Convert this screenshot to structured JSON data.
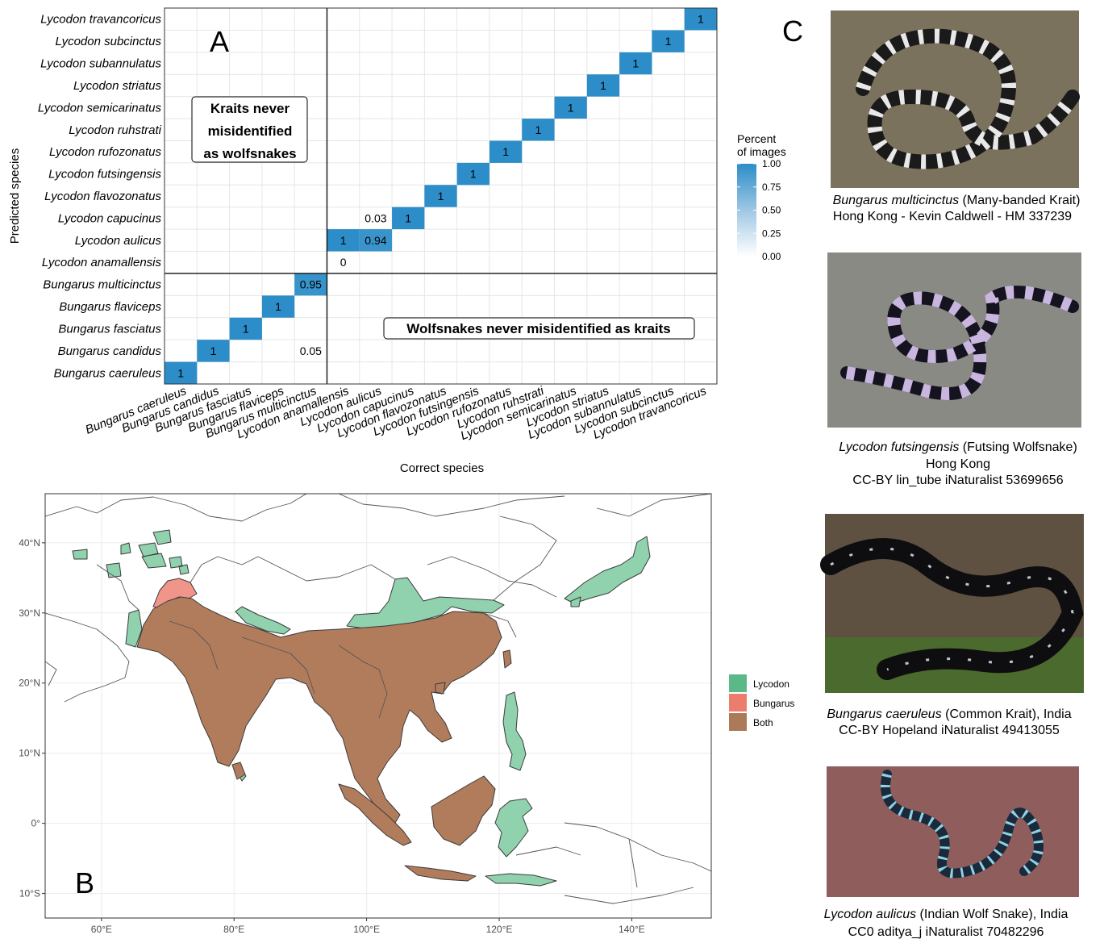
{
  "panels": {
    "a": "A",
    "b": "B",
    "c": "C"
  },
  "chart_data": [
    {
      "type": "heatmap",
      "panel": "A",
      "xlabel": "Correct species",
      "ylabel": "Predicted species",
      "categories": [
        "Bungarus caeruleus",
        "Bungarus candidus",
        "Bungarus fasciatus",
        "Bungarus flaviceps",
        "Bungarus multicinctus",
        "Lycodon anamallensis",
        "Lycodon aulicus",
        "Lycodon capucinus",
        "Lycodon flavozonatus",
        "Lycodon futsingensis",
        "Lycodon rufozonatus",
        "Lycodon ruhstrati",
        "Lycodon semicarinatus",
        "Lycodon striatus",
        "Lycodon subannulatus",
        "Lycodon subcinctus",
        "Lycodon travancoricus"
      ],
      "cells": [
        {
          "x": "Bungarus caeruleus",
          "y": "Bungarus caeruleus",
          "value": 1,
          "label": "1"
        },
        {
          "x": "Bungarus candidus",
          "y": "Bungarus candidus",
          "value": 1,
          "label": "1"
        },
        {
          "x": "Bungarus fasciatus",
          "y": "Bungarus fasciatus",
          "value": 1,
          "label": "1"
        },
        {
          "x": "Bungarus flaviceps",
          "y": "Bungarus flaviceps",
          "value": 1,
          "label": "1"
        },
        {
          "x": "Bungarus multicinctus",
          "y": "Bungarus multicinctus",
          "value": 0.95,
          "label": "0.95"
        },
        {
          "x": "Bungarus multicinctus",
          "y": "Bungarus candidus",
          "value": 0.05,
          "label": "0.05"
        },
        {
          "x": "Lycodon anamallensis",
          "y": "Lycodon anamallensis",
          "value": 0,
          "label": "0"
        },
        {
          "x": "Lycodon anamallensis",
          "y": "Lycodon aulicus",
          "value": 1,
          "label": "1"
        },
        {
          "x": "Lycodon aulicus",
          "y": "Lycodon aulicus",
          "value": 0.94,
          "label": "0.94"
        },
        {
          "x": "Lycodon aulicus",
          "y": "Lycodon capucinus",
          "value": 0.03,
          "label": "0.03"
        },
        {
          "x": "Lycodon capucinus",
          "y": "Lycodon capucinus",
          "value": 1,
          "label": "1"
        },
        {
          "x": "Lycodon flavozonatus",
          "y": "Lycodon flavozonatus",
          "value": 1,
          "label": "1"
        },
        {
          "x": "Lycodon futsingensis",
          "y": "Lycodon futsingensis",
          "value": 1,
          "label": "1"
        },
        {
          "x": "Lycodon rufozonatus",
          "y": "Lycodon rufozonatus",
          "value": 1,
          "label": "1"
        },
        {
          "x": "Lycodon ruhstrati",
          "y": "Lycodon ruhstrati",
          "value": 1,
          "label": "1"
        },
        {
          "x": "Lycodon semicarinatus",
          "y": "Lycodon semicarinatus",
          "value": 1,
          "label": "1"
        },
        {
          "x": "Lycodon striatus",
          "y": "Lycodon striatus",
          "value": 1,
          "label": "1"
        },
        {
          "x": "Lycodon subannulatus",
          "y": "Lycodon subannulatus",
          "value": 1,
          "label": "1"
        },
        {
          "x": "Lycodon subcinctus",
          "y": "Lycodon subcinctus",
          "value": 1,
          "label": "1"
        },
        {
          "x": "Lycodon travancoricus",
          "y": "Lycodon travancoricus",
          "value": 1,
          "label": "1"
        }
      ],
      "divider_after_index": 4,
      "legend": {
        "title_lines": [
          "Percent",
          "of images"
        ],
        "ticks": [
          1.0,
          0.75,
          0.5,
          0.25,
          0.0
        ],
        "tick_labels": [
          "1.00",
          "0.75",
          "0.50",
          "0.25",
          "0.00"
        ],
        "placement": "right",
        "colors": [
          "#ffffff",
          "#2c8dc8"
        ]
      },
      "annotations": [
        {
          "lines": [
            "Kraits never",
            "misidentified",
            "as wolfsnakes"
          ]
        },
        {
          "lines": [
            "Wolfsnakes never misidentified as kraits"
          ]
        }
      ]
    },
    {
      "type": "map",
      "panel": "B",
      "lon_ticks": [
        60,
        80,
        100,
        120,
        140
      ],
      "lon_tick_labels": [
        "60°E",
        "80°E",
        "100°E",
        "120°E",
        "140°E"
      ],
      "lat_ticks": [
        40,
        30,
        20,
        10,
        0,
        -10
      ],
      "lat_tick_labels": [
        "40°N",
        "30°N",
        "20°N",
        "10°N",
        "0°",
        "10°S"
      ],
      "xlim": [
        51.5,
        152
      ],
      "ylim": [
        -13.5,
        47
      ],
      "legend": [
        {
          "label": "Lycodon",
          "color": "#5ab987"
        },
        {
          "label": "Bungarus",
          "color": "#ec7c6c"
        },
        {
          "label": "Both",
          "color": "#ad7a59"
        }
      ],
      "region_colors": {
        "lycodon": "#90d2ae",
        "bungarus": "#f1958a",
        "both": "#b17c5c"
      }
    }
  ],
  "photos": [
    {
      "species": "Bungarus multicinctus",
      "rest": " (Many-banded Krait)",
      "line2": "Hong Kong - Kevin Caldwell - HM 337239",
      "line3": ""
    },
    {
      "species": "Lycodon futsingensis",
      "rest": " (Futsing Wolfsnake)",
      "line2": "Hong Kong",
      "line3": "CC-BY lin_tube iNaturalist 53699656"
    },
    {
      "species": "Bungarus caeruleus",
      "rest": " (Common Krait), India",
      "line2": "CC-BY Hopeland iNaturalist 49413055",
      "line3": ""
    },
    {
      "species": "Lycodon aulicus",
      "rest": " (Indian Wolf Snake), India",
      "line2": "CC0 aditya_j iNaturalist 70482296",
      "line3": ""
    }
  ]
}
